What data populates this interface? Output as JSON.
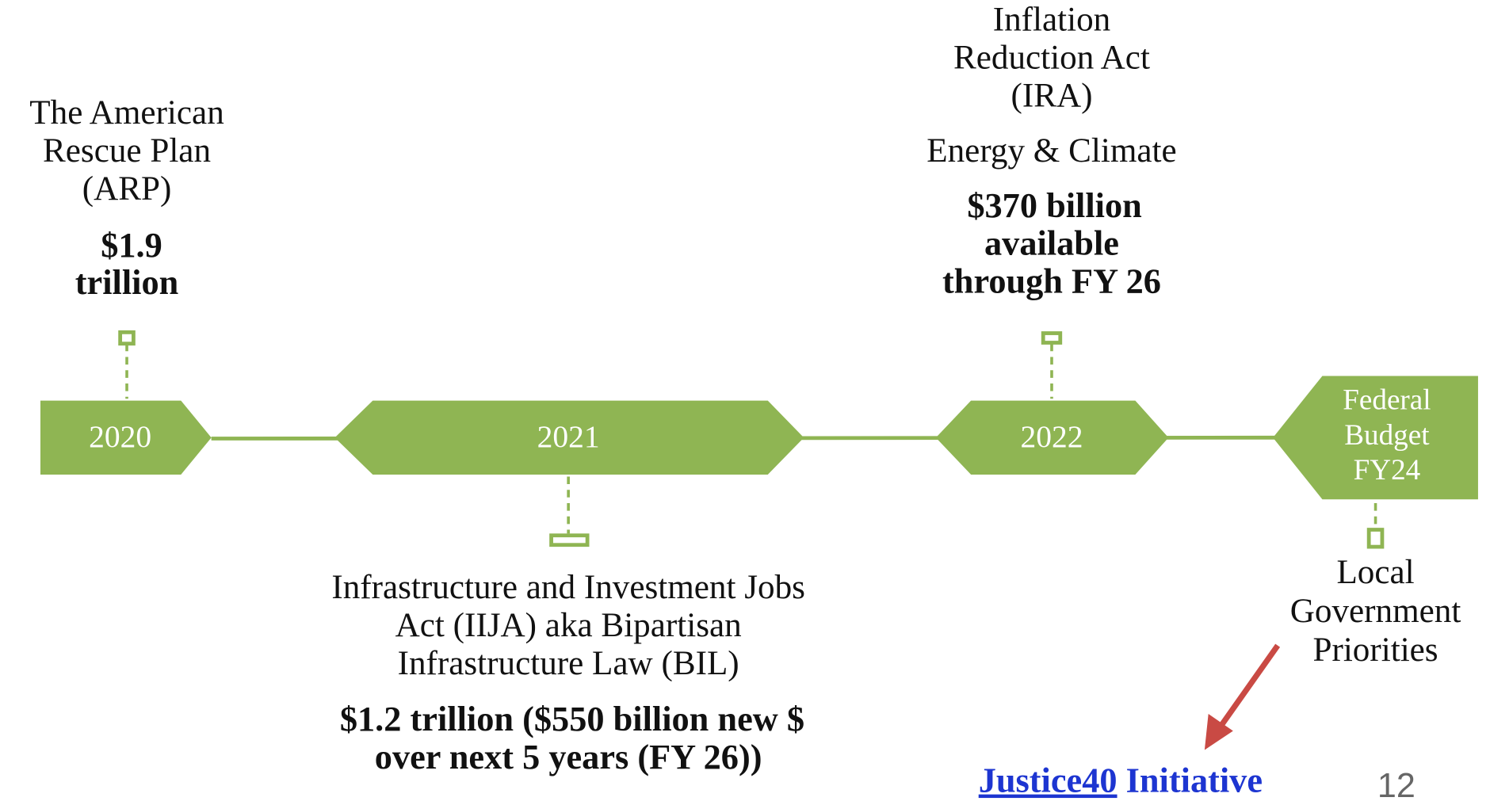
{
  "milestones": [
    {
      "year": "2020",
      "lines": [
        "The American",
        "Rescue Plan",
        "(ARP)"
      ],
      "amount": [
        "$1.9",
        "trillion"
      ]
    },
    {
      "year": "2021",
      "lines": [
        "Infrastructure and Investment Jobs",
        "Act (IIJA) aka Bipartisan",
        "Infrastructure Law (BIL)"
      ],
      "amount": [
        "$1.2 trillion ($550 billion new $",
        "over next 5 years (FY 26))"
      ]
    },
    {
      "year": "2022",
      "lines": [
        "Inflation",
        "Reduction Act",
        "(IRA)"
      ],
      "subtitle": "Energy & Climate",
      "amount": [
        "$370 billion",
        "available",
        "through FY 26"
      ]
    },
    {
      "year": [
        "Federal",
        "Budget",
        "FY24"
      ],
      "lines": [
        "Local",
        "Government",
        "Priorities"
      ]
    }
  ],
  "link": {
    "text": "Justice40",
    "suffix": "Initiative"
  },
  "page_number": "12"
}
